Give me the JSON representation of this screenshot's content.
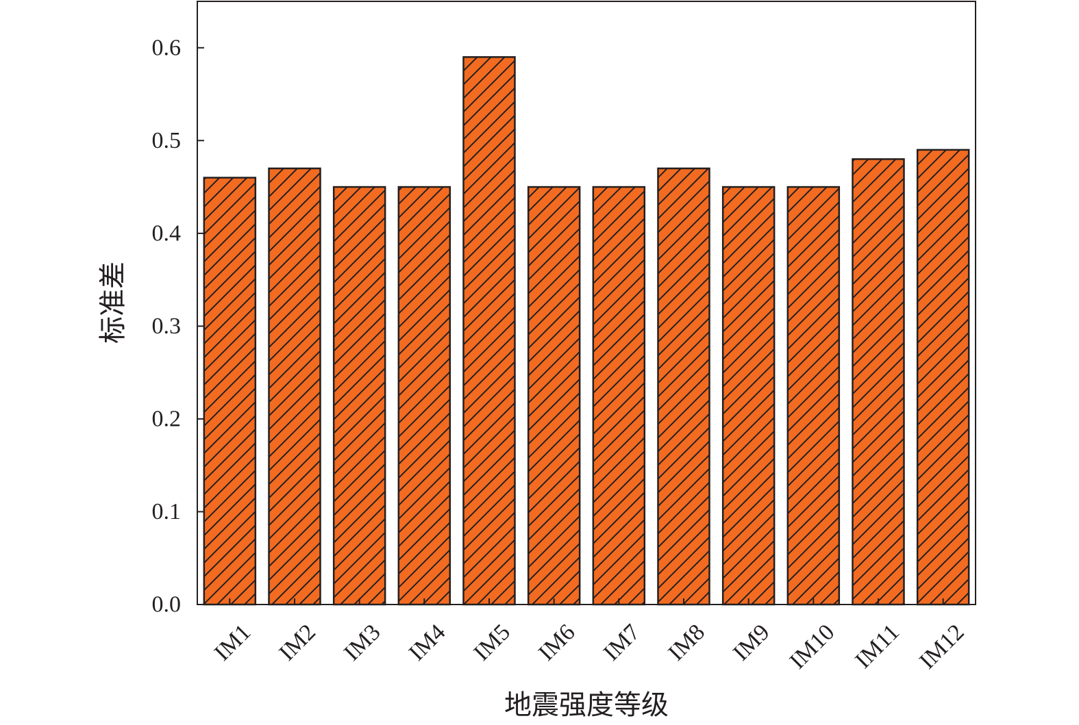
{
  "chart_data": {
    "type": "bar",
    "title": "",
    "xlabel": "地震强度等级",
    "ylabel": "标准差",
    "categories": [
      "IM1",
      "IM2",
      "IM3",
      "IM4",
      "IM5",
      "IM6",
      "IM7",
      "IM8",
      "IM9",
      "IM10",
      "IM11",
      "IM12"
    ],
    "values": [
      0.46,
      0.47,
      0.45,
      0.45,
      0.59,
      0.45,
      0.45,
      0.47,
      0.45,
      0.45,
      0.48,
      0.49
    ],
    "ylim": [
      0,
      0.65
    ],
    "yticks": [
      "0.0",
      "0.1",
      "0.2",
      "0.3",
      "0.4",
      "0.5",
      "0.6"
    ],
    "grid": false,
    "legend": "none",
    "bar_fill": "#f26b21",
    "bar_hatch": "diagonal",
    "bar_edge": "#231f20",
    "axis_color": "#231f20"
  }
}
